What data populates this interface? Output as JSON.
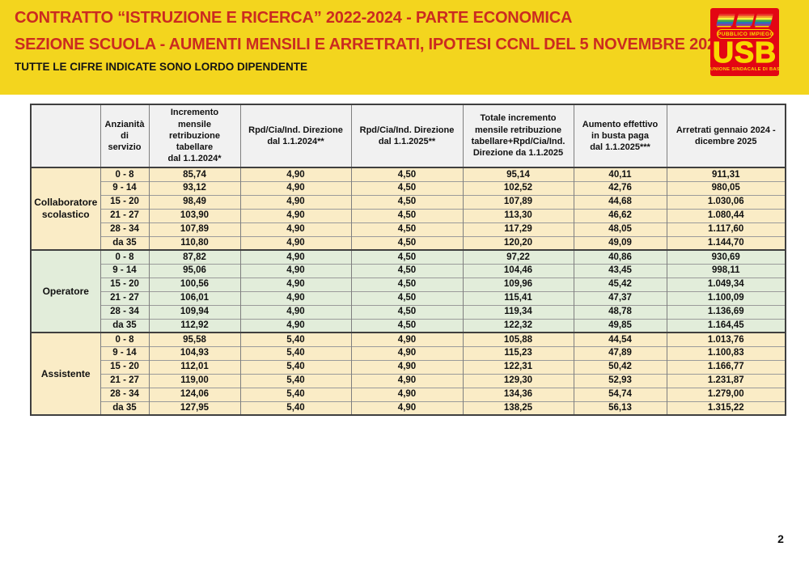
{
  "banner": {
    "line1": "CONTRATTO “ISTRUZIONE E RICERCA” 2022-2024 - PARTE ECONOMICA",
    "line2": "SEZIONE SCUOLA - AUMENTI MENSILI E ARRETRATI, IPOTESI CCNL DEL 5 NOVEMBRE 2025",
    "line3": "TUTTE LE CIFRE INDICATE SONO LORDO DIPENDENTE"
  },
  "logo": {
    "sector": "PUBBLICO IMPIEGO",
    "acronym": "USB",
    "org": "UNIONE SINDACALE DI BASE"
  },
  "colors": {
    "banner_bg": "#F3D51E",
    "title_red": "#CB2B20",
    "logo_red": "#E30613",
    "logo_yellow": "#F8D800",
    "header_bg": "#F1F1F1",
    "cream_row": "#FAECC6",
    "green_row": "#E2EDDA",
    "border_dark": "#3F3F3F",
    "border_gray": "#7F7F7F"
  },
  "table": {
    "column_headers": [
      "",
      "Anzianità\ndi\nservizio",
      "Incremento\nmensile\nretribuzione\ntabellare\ndal 1.1.2024*",
      "Rpd/Cia/Ind. Direzione\ndal 1.1.2024**",
      "Rpd/Cia/Ind. Direzione\ndal 1.1.2025**",
      "Totale incremento\nmensile retribuzione\ntabellare+Rpd/Cia/Ind.\nDirezione da 1.1.2025",
      "Aumento effettivo\nin busta paga\ndal 1.1.2025***",
      "Arretrati gennaio 2024 -\ndicembre 2025"
    ],
    "groups": [
      {
        "role": "Collaboratore scolastico",
        "tone": "cream",
        "rows": [
          [
            "0 - 8",
            "85,74",
            "4,90",
            "4,50",
            "95,14",
            "40,11",
            "911,31"
          ],
          [
            "9 - 14",
            "93,12",
            "4,90",
            "4,50",
            "102,52",
            "42,76",
            "980,05"
          ],
          [
            "15 - 20",
            "98,49",
            "4,90",
            "4,50",
            "107,89",
            "44,68",
            "1.030,06"
          ],
          [
            "21 - 27",
            "103,90",
            "4,90",
            "4,50",
            "113,30",
            "46,62",
            "1.080,44"
          ],
          [
            "28 - 34",
            "107,89",
            "4,90",
            "4,50",
            "117,29",
            "48,05",
            "1.117,60"
          ],
          [
            "da 35",
            "110,80",
            "4,90",
            "4,50",
            "120,20",
            "49,09",
            "1.144,70"
          ]
        ]
      },
      {
        "role": "Operatore",
        "tone": "green",
        "rows": [
          [
            "0 - 8",
            "87,82",
            "4,90",
            "4,50",
            "97,22",
            "40,86",
            "930,69"
          ],
          [
            "9 - 14",
            "95,06",
            "4,90",
            "4,50",
            "104,46",
            "43,45",
            "998,11"
          ],
          [
            "15 - 20",
            "100,56",
            "4,90",
            "4,50",
            "109,96",
            "45,42",
            "1.049,34"
          ],
          [
            "21 - 27",
            "106,01",
            "4,90",
            "4,50",
            "115,41",
            "47,37",
            "1.100,09"
          ],
          [
            "28 - 34",
            "109,94",
            "4,90",
            "4,50",
            "119,34",
            "48,78",
            "1.136,69"
          ],
          [
            "da 35",
            "112,92",
            "4,90",
            "4,50",
            "122,32",
            "49,85",
            "1.164,45"
          ]
        ]
      },
      {
        "role": "Assistente",
        "tone": "cream",
        "rows": [
          [
            "0 - 8",
            "95,58",
            "5,40",
            "4,90",
            "105,88",
            "44,54",
            "1.013,76"
          ],
          [
            "9 - 14",
            "104,93",
            "5,40",
            "4,90",
            "115,23",
            "47,89",
            "1.100,83"
          ],
          [
            "15 - 20",
            "112,01",
            "5,40",
            "4,90",
            "122,31",
            "50,42",
            "1.166,77"
          ],
          [
            "21 - 27",
            "119,00",
            "5,40",
            "4,90",
            "129,30",
            "52,93",
            "1.231,87"
          ],
          [
            "28 - 34",
            "124,06",
            "5,40",
            "4,90",
            "134,36",
            "54,74",
            "1.279,00"
          ],
          [
            "da 35",
            "127,95",
            "5,40",
            "4,90",
            "138,25",
            "56,13",
            "1.315,22"
          ]
        ]
      }
    ]
  },
  "page_number": "2"
}
